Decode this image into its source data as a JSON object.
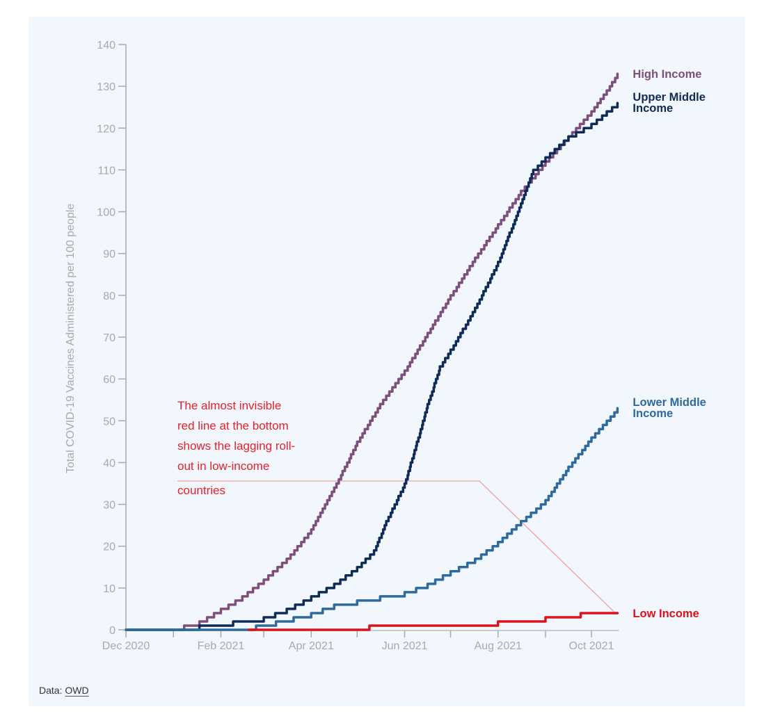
{
  "chart_data": {
    "type": "line",
    "title": "",
    "xlabel": "",
    "ylabel": "Total COVID-19 Vaccines Administered per 100 people",
    "x_unit": "days since Dec 1 2020",
    "xlim": [
      0,
      321
    ],
    "ylim": [
      0,
      140
    ],
    "grid": false,
    "yticks": [
      0,
      10,
      20,
      30,
      40,
      50,
      60,
      70,
      80,
      90,
      100,
      110,
      120,
      130,
      140
    ],
    "xticks": [
      {
        "day": 0,
        "label": "Dec 2020"
      },
      {
        "day": 31,
        "label": ""
      },
      {
        "day": 62,
        "label": "Feb 2021"
      },
      {
        "day": 90,
        "label": ""
      },
      {
        "day": 121,
        "label": "Apr 2021"
      },
      {
        "day": 151,
        "label": ""
      },
      {
        "day": 182,
        "label": "Jun 2021"
      },
      {
        "day": 212,
        "label": ""
      },
      {
        "day": 243,
        "label": "Aug 2021"
      },
      {
        "day": 274,
        "label": ""
      },
      {
        "day": 304,
        "label": "Oct 2021"
      }
    ],
    "series": [
      {
        "name": "High Income",
        "color": "#7d4f7a",
        "label_lines": [
          "High Income"
        ],
        "points": [
          [
            0,
            0
          ],
          [
            31,
            0
          ],
          [
            38,
            1
          ],
          [
            48,
            2
          ],
          [
            62,
            5
          ],
          [
            76,
            8
          ],
          [
            90,
            12
          ],
          [
            105,
            17
          ],
          [
            121,
            24
          ],
          [
            136,
            34
          ],
          [
            151,
            45
          ],
          [
            166,
            54
          ],
          [
            182,
            62
          ],
          [
            197,
            71
          ],
          [
            212,
            80
          ],
          [
            228,
            89
          ],
          [
            243,
            97
          ],
          [
            258,
            105
          ],
          [
            274,
            112
          ],
          [
            289,
            118
          ],
          [
            304,
            124
          ],
          [
            314,
            129
          ],
          [
            321,
            133
          ]
        ]
      },
      {
        "name": "Upper Middle Income",
        "color": "#0f2b57",
        "label_lines": [
          "Upper Middle",
          "Income"
        ],
        "points": [
          [
            0,
            0
          ],
          [
            31,
            0
          ],
          [
            40,
            0
          ],
          [
            48,
            1
          ],
          [
            62,
            1
          ],
          [
            70,
            2
          ],
          [
            90,
            3
          ],
          [
            105,
            5
          ],
          [
            121,
            8
          ],
          [
            136,
            11
          ],
          [
            151,
            15
          ],
          [
            162,
            19
          ],
          [
            170,
            26
          ],
          [
            182,
            35
          ],
          [
            190,
            45
          ],
          [
            197,
            54
          ],
          [
            205,
            63
          ],
          [
            212,
            67
          ],
          [
            228,
            77
          ],
          [
            243,
            88
          ],
          [
            258,
            102
          ],
          [
            266,
            110
          ],
          [
            274,
            113
          ],
          [
            289,
            118
          ],
          [
            304,
            121
          ],
          [
            314,
            124
          ],
          [
            321,
            126
          ]
        ]
      },
      {
        "name": "Lower Middle Income",
        "color": "#2e6a9c",
        "label_lines": [
          "Lower Middle",
          "Income"
        ],
        "points": [
          [
            0,
            0
          ],
          [
            31,
            0
          ],
          [
            62,
            0
          ],
          [
            79,
            0
          ],
          [
            85,
            1
          ],
          [
            98,
            2
          ],
          [
            121,
            4
          ],
          [
            136,
            6
          ],
          [
            151,
            7
          ],
          [
            166,
            8
          ],
          [
            182,
            9
          ],
          [
            197,
            11
          ],
          [
            212,
            14
          ],
          [
            228,
            17
          ],
          [
            243,
            21
          ],
          [
            258,
            26
          ],
          [
            274,
            31
          ],
          [
            289,
            39
          ],
          [
            304,
            46
          ],
          [
            314,
            50
          ],
          [
            321,
            53
          ]
        ]
      },
      {
        "name": "Low Income",
        "color": "#d9141a",
        "label_lines": [
          "Low Income"
        ],
        "points": [
          [
            80,
            0
          ],
          [
            158,
            0
          ],
          [
            159,
            1
          ],
          [
            242,
            1
          ],
          [
            243,
            2
          ],
          [
            273,
            2
          ],
          [
            274,
            3
          ],
          [
            296,
            3
          ],
          [
            297,
            4
          ],
          [
            321,
            4
          ]
        ]
      }
    ],
    "annotation": {
      "text_lines": [
        "The almost invisible",
        "red line at the bottom",
        "shows the lagging roll-",
        "out in low-income",
        "countries"
      ],
      "color": "#e8202a",
      "points_to": "Low Income"
    }
  },
  "source": {
    "prefix": "Data: ",
    "link_text": "OWD"
  }
}
